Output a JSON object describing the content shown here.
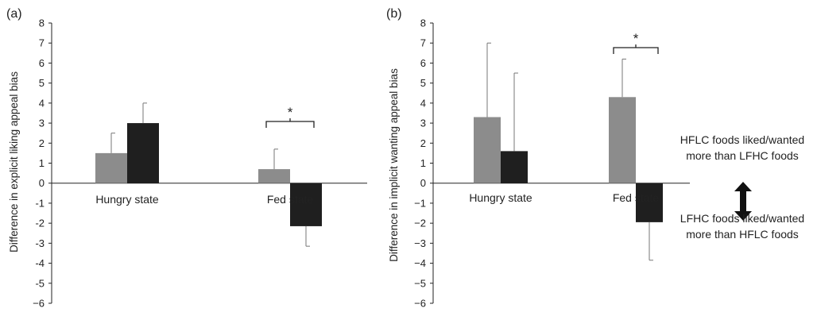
{
  "chart_data": [
    {
      "type": "bar",
      "panel_label": "(a)",
      "categories": [
        "Hungry state",
        "Fed state"
      ],
      "ylabel": "Difference in explicit liking appeal bias",
      "ylim": [
        -6,
        8
      ],
      "yticks": [
        "8",
        "7",
        "6",
        "5",
        "4",
        "3",
        "2",
        "1",
        "0",
        "-1",
        "-2",
        "-3",
        "-4",
        "-5",
        "−6"
      ],
      "colors": [
        "#8c8c8c",
        "#1f1f1f"
      ],
      "series": [
        {
          "values": [
            1.5,
            0.7
          ],
          "errors": [
            1.0,
            1.0
          ]
        },
        {
          "values": [
            3.0,
            -2.15
          ],
          "errors": [
            1.0,
            1.0
          ]
        }
      ],
      "significance": [
        {
          "category": "Fed state",
          "label": "*"
        }
      ]
    },
    {
      "type": "bar",
      "panel_label": "(b)",
      "categories": [
        "Hungry state",
        "Fed state"
      ],
      "ylabel": "Difference in implicit wanting appeal bias",
      "ylim": [
        -6,
        8
      ],
      "yticks": [
        "8",
        "7",
        "6",
        "5",
        "4",
        "3",
        "2",
        "1",
        "0",
        "−1",
        "−2",
        "−3",
        "−4",
        "−5",
        "−6"
      ],
      "colors": [
        "#8c8c8c",
        "#1f1f1f"
      ],
      "series": [
        {
          "values": [
            3.3,
            4.3
          ],
          "errors": [
            3.7,
            1.9
          ]
        },
        {
          "values": [
            1.6,
            -1.95
          ],
          "errors": [
            3.9,
            1.9
          ]
        }
      ],
      "significance": [
        {
          "category": "Fed state",
          "label": "*"
        }
      ]
    }
  ],
  "annotations": {
    "top_line1": "HFLC foods liked/wanted",
    "top_line2": "more than LFHC foods",
    "bottom_line1": "LFHC foods liked/wanted",
    "bottom_line2": "more than HFLC foods",
    "arrow_icon": "double-vertical-arrow-icon"
  }
}
